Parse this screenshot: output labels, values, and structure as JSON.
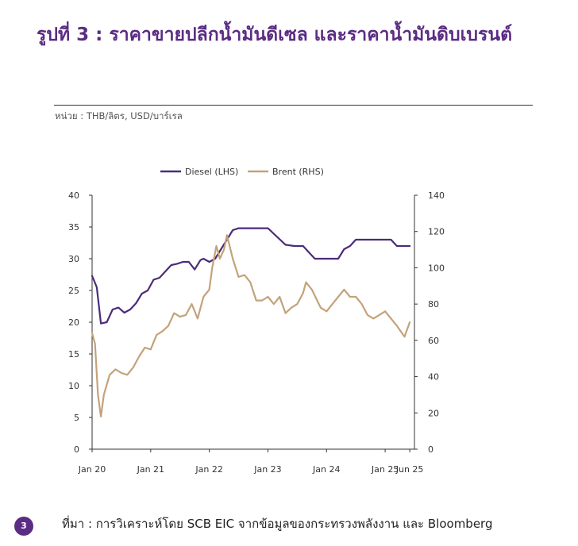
{
  "title": "รูปที่ 3 : ราคาขายปลีกน้ำมันดีเซล และราคาน้ำมันดิบเบรนต์",
  "unit_label": "หน่วย : THB/ลิตร, USD/บาร์เรล",
  "footer": {
    "source": "ที่มา : การวิเคราะห์โดย SCB EIC จากข้อมูลของกระทรวงพลังงาน และ Bloomberg",
    "page_number": "3"
  },
  "colors": {
    "title": "#5B2C83",
    "diesel": "#4B2C7A",
    "brent": "#C4A27A",
    "badge": "#5B2C83"
  },
  "chart_data": {
    "type": "line",
    "title": "",
    "legend": {
      "position": "top-center",
      "entries": [
        "Diesel (LHS)",
        "Brent (RHS)"
      ]
    },
    "grid": false,
    "x_axis": {
      "range": [
        2020.0,
        2025.5
      ],
      "ticks": [
        {
          "value": 2020.0,
          "label": "Jan 20"
        },
        {
          "value": 2021.0,
          "label": "Jan 21"
        },
        {
          "value": 2022.0,
          "label": "Jan 22"
        },
        {
          "value": 2023.0,
          "label": "Jan 23"
        },
        {
          "value": 2024.0,
          "label": "Jan 24"
        },
        {
          "value": 2025.0,
          "label": "Jan 25"
        },
        {
          "value": 2025.42,
          "label": "Jun 25"
        }
      ]
    },
    "y_left": {
      "range": [
        0,
        40
      ],
      "ticks": [
        0,
        5,
        10,
        15,
        20,
        25,
        30,
        35,
        40
      ]
    },
    "y_right": {
      "range": [
        0,
        140
      ],
      "ticks": [
        0,
        20,
        40,
        60,
        80,
        100,
        120,
        140
      ]
    },
    "series": [
      {
        "name": "Diesel (LHS)",
        "axis": "left",
        "x": [
          2020.0,
          2020.08,
          2020.15,
          2020.25,
          2020.35,
          2020.45,
          2020.55,
          2020.65,
          2020.75,
          2020.85,
          2020.95,
          2021.05,
          2021.15,
          2021.25,
          2021.35,
          2021.45,
          2021.55,
          2021.65,
          2021.75,
          2021.85,
          2021.9,
          2022.0,
          2022.1,
          2022.2,
          2022.3,
          2022.4,
          2022.5,
          2022.6,
          2022.75,
          2023.0,
          2023.15,
          2023.3,
          2023.45,
          2023.6,
          2023.7,
          2023.8,
          2024.0,
          2024.2,
          2024.3,
          2024.4,
          2024.5,
          2024.7,
          2025.0,
          2025.1,
          2025.2,
          2025.42
        ],
        "values": [
          27.3,
          25.5,
          19.8,
          20.0,
          22.0,
          22.3,
          21.5,
          22.0,
          23.0,
          24.5,
          25.0,
          26.7,
          27.0,
          28.0,
          29.0,
          29.2,
          29.5,
          29.5,
          28.3,
          29.8,
          30.0,
          29.5,
          30.0,
          31.5,
          33.0,
          34.5,
          34.8,
          34.8,
          34.8,
          34.8,
          33.5,
          32.2,
          32.0,
          32.0,
          31.0,
          30.0,
          30.0,
          30.0,
          31.5,
          32.0,
          33.0,
          33.0,
          33.0,
          33.0,
          32.0,
          32.0
        ]
      },
      {
        "name": "Brent (RHS)",
        "axis": "right",
        "x": [
          2020.0,
          2020.05,
          2020.1,
          2020.15,
          2020.2,
          2020.3,
          2020.4,
          2020.5,
          2020.6,
          2020.7,
          2020.8,
          2020.9,
          2021.0,
          2021.1,
          2021.2,
          2021.3,
          2021.4,
          2021.5,
          2021.6,
          2021.7,
          2021.8,
          2021.9,
          2022.0,
          2022.05,
          2022.12,
          2022.18,
          2022.25,
          2022.3,
          2022.4,
          2022.5,
          2022.6,
          2022.7,
          2022.8,
          2022.9,
          2023.0,
          2023.1,
          2023.2,
          2023.3,
          2023.4,
          2023.5,
          2023.6,
          2023.65,
          2023.75,
          2023.9,
          2024.0,
          2024.1,
          2024.2,
          2024.3,
          2024.4,
          2024.5,
          2024.6,
          2024.7,
          2024.8,
          2024.9,
          2025.0,
          2025.1,
          2025.2,
          2025.33,
          2025.42
        ],
        "values": [
          64,
          58,
          30,
          18,
          30,
          41,
          44,
          42,
          41,
          45,
          51,
          56,
          55,
          63,
          65,
          68,
          75,
          73,
          74,
          80,
          72,
          84,
          88,
          100,
          112,
          105,
          110,
          118,
          105,
          95,
          96,
          92,
          82,
          82,
          84,
          80,
          84,
          75,
          78,
          80,
          86,
          92,
          88,
          78,
          76,
          80,
          84,
          88,
          84,
          84,
          80,
          74,
          72,
          74,
          76,
          72,
          68,
          62,
          70
        ]
      }
    ]
  }
}
